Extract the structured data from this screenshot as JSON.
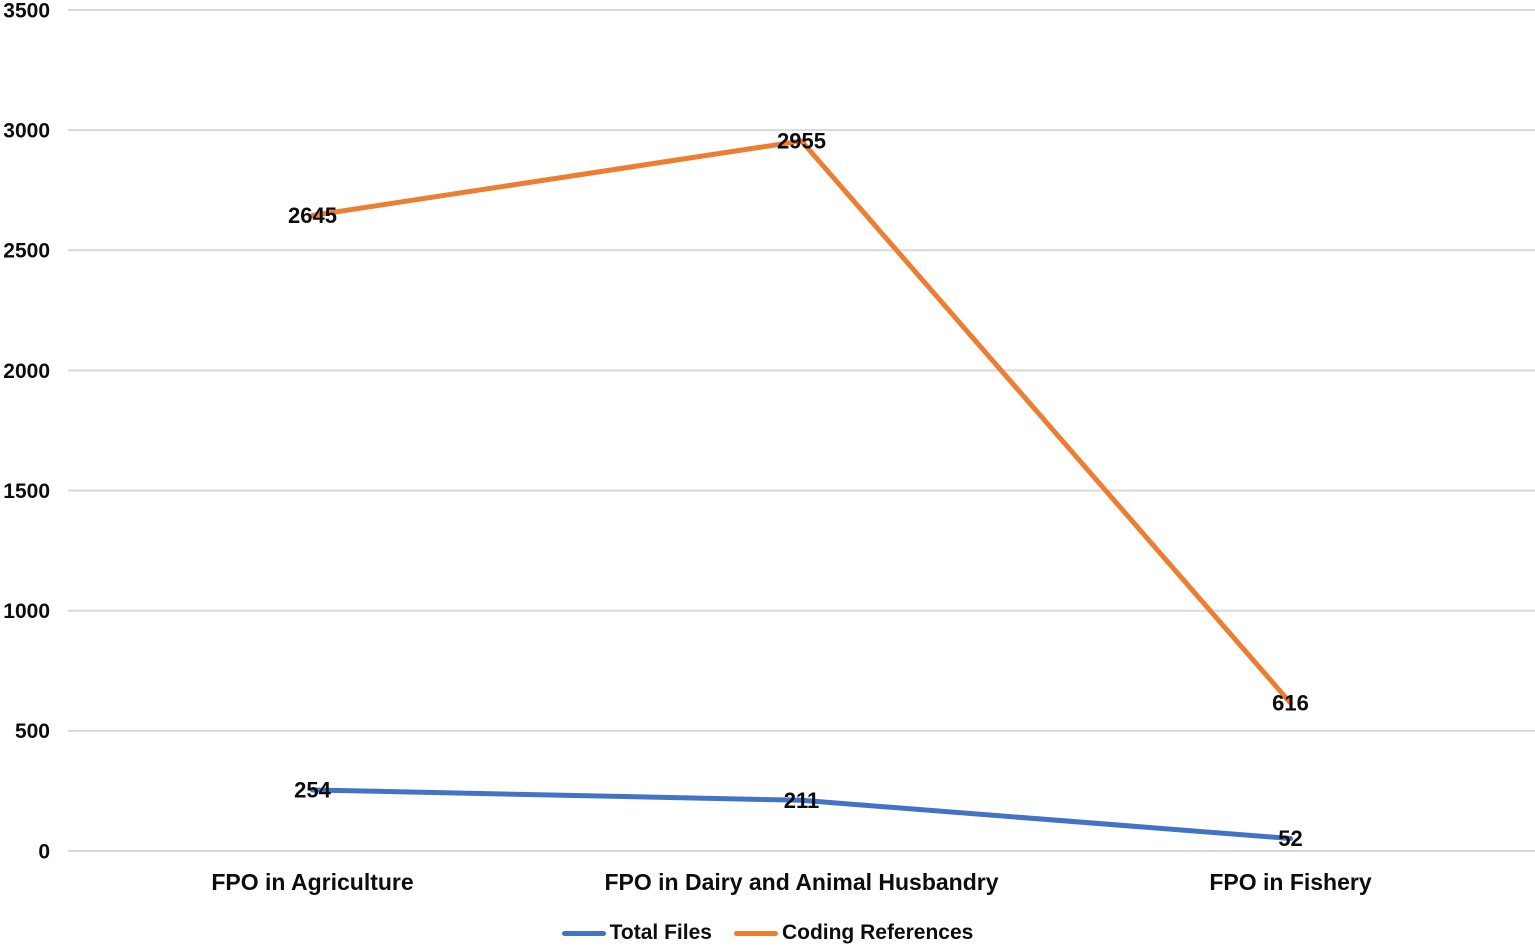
{
  "chart_data": {
    "type": "line",
    "categories": [
      "FPO in Agriculture",
      "FPO in Dairy and Animal Husbandry",
      "FPO in Fishery"
    ],
    "series": [
      {
        "name": "Total Files",
        "values": [
          254,
          211,
          52
        ],
        "color": "#4472C4"
      },
      {
        "name": "Coding References",
        "values": [
          2645,
          2955,
          616
        ],
        "color": "#ED7D31"
      }
    ],
    "title": "",
    "xlabel": "",
    "ylabel": "",
    "ylim": [
      0,
      3500
    ],
    "ytick_step": 500,
    "ytick_labels": [
      "0",
      "500",
      "1000",
      "1500",
      "2000",
      "2500",
      "3000",
      "3500"
    ],
    "grid": true,
    "data_labels": true,
    "legend_position": "bottom"
  },
  "colors": {
    "grid": "#D9D9D9",
    "text": "#0D0D0D",
    "background": "#FFFFFF"
  }
}
